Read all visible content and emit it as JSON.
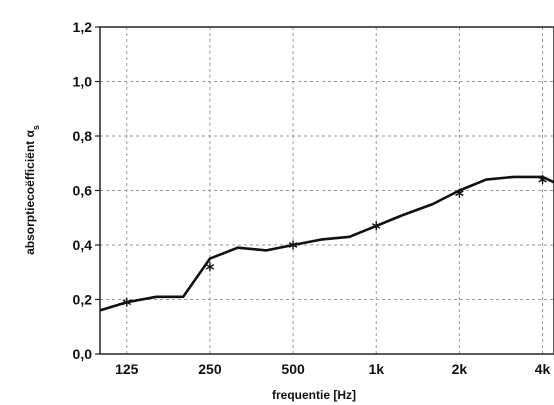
{
  "chart_data": {
    "type": "line",
    "xlabel": "frequentie [Hz]",
    "ylabel": "absorptiecoëfficiënt α",
    "ylabel_sub": "s",
    "x_scale": "log",
    "x_ticks": [
      {
        "label": "125",
        "value": 125
      },
      {
        "label": "250",
        "value": 250
      },
      {
        "label": "500",
        "value": 500
      },
      {
        "label": "1k",
        "value": 1000
      },
      {
        "label": "2k",
        "value": 2000
      },
      {
        "label": "4k",
        "value": 4000
      }
    ],
    "y_ticks": [
      "0,0",
      "0,2",
      "0,4",
      "0,6",
      "0,8",
      "1,0",
      "1,2"
    ],
    "ylim": [
      0,
      1.2
    ],
    "xlim": [
      100,
      4400
    ],
    "grid": true,
    "series": [
      {
        "x": [
          100,
          125,
          160,
          200,
          250,
          315,
          400,
          500,
          630,
          800,
          1000,
          1250,
          1600,
          2000,
          2500,
          3150,
          4000,
          4400
        ],
        "y": [
          0.16,
          0.19,
          0.21,
          0.21,
          0.35,
          0.39,
          0.38,
          0.4,
          0.42,
          0.43,
          0.47,
          0.51,
          0.55,
          0.6,
          0.64,
          0.65,
          0.65,
          0.63
        ]
      }
    ],
    "markers": {
      "x": [
        125,
        250,
        500,
        1000,
        2000,
        4000
      ],
      "y": [
        0.19,
        0.32,
        0.4,
        0.47,
        0.59,
        0.64
      ]
    }
  }
}
